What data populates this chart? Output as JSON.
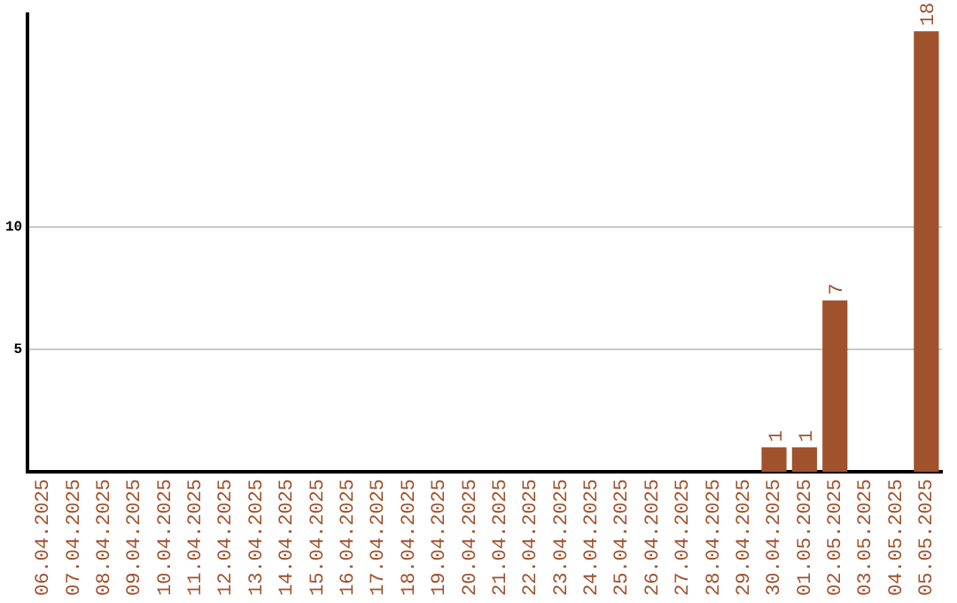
{
  "chart_data": {
    "type": "bar",
    "categories": [
      "06.04.2025",
      "07.04.2025",
      "08.04.2025",
      "09.04.2025",
      "10.04.2025",
      "11.04.2025",
      "12.04.2025",
      "13.04.2025",
      "14.04.2025",
      "15.04.2025",
      "16.04.2025",
      "17.04.2025",
      "18.04.2025",
      "19.04.2025",
      "20.04.2025",
      "21.04.2025",
      "22.04.2025",
      "23.04.2025",
      "24.04.2025",
      "25.04.2025",
      "26.04.2025",
      "27.04.2025",
      "28.04.2025",
      "29.04.2025",
      "30.04.2025",
      "01.05.2025",
      "02.05.2025",
      "03.05.2025",
      "04.05.2025",
      "05.05.2025"
    ],
    "values": [
      0,
      0,
      0,
      0,
      0,
      0,
      0,
      0,
      0,
      0,
      0,
      0,
      0,
      0,
      0,
      0,
      0,
      0,
      0,
      0,
      0,
      0,
      0,
      0,
      1,
      1,
      7,
      0,
      0,
      18
    ],
    "value_labels": [
      null,
      null,
      null,
      null,
      null,
      null,
      null,
      null,
      null,
      null,
      null,
      null,
      null,
      null,
      null,
      null,
      null,
      null,
      null,
      null,
      null,
      null,
      null,
      null,
      "1",
      "1",
      "7",
      null,
      null,
      "18"
    ],
    "color": "#a0522d",
    "ylim": [
      0,
      18.7
    ],
    "yticks": [
      5,
      10
    ],
    "grid": "y",
    "legend": false
  }
}
